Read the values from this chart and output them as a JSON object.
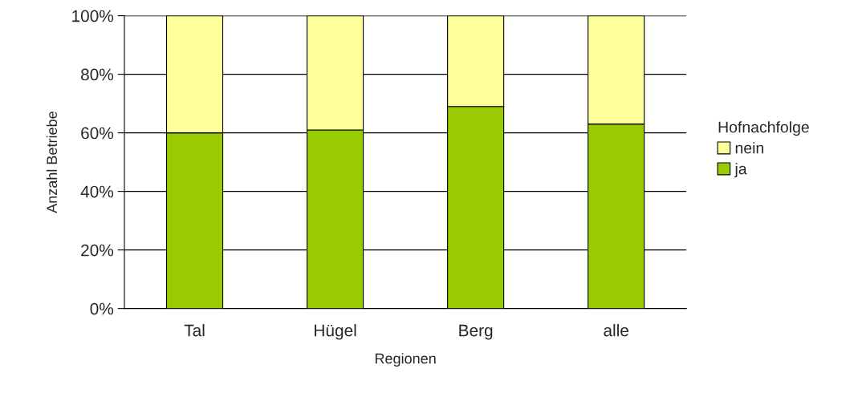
{
  "chart_data": {
    "type": "bar",
    "stacked": true,
    "xlabel": "Regionen",
    "ylabel": "Anzahl Betriebe",
    "legend_title": "Hofnachfolge",
    "categories": [
      "Tal",
      "Hügel",
      "Berg",
      "alle"
    ],
    "series": [
      {
        "name": "ja",
        "color": "#99cc00",
        "values": [
          60,
          61,
          69,
          63
        ]
      },
      {
        "name": "nein",
        "color": "#ffff99",
        "values": [
          40,
          39,
          31,
          37
        ]
      }
    ],
    "ylim": [
      0,
      100
    ],
    "yticks": [
      {
        "value": 0,
        "label": "0%"
      },
      {
        "value": 20,
        "label": "20%"
      },
      {
        "value": 40,
        "label": "40%"
      },
      {
        "value": 60,
        "label": "60%"
      },
      {
        "value": 80,
        "label": "80%"
      },
      {
        "value": 100,
        "label": "100%"
      }
    ],
    "grid": "y",
    "legend": "right"
  }
}
